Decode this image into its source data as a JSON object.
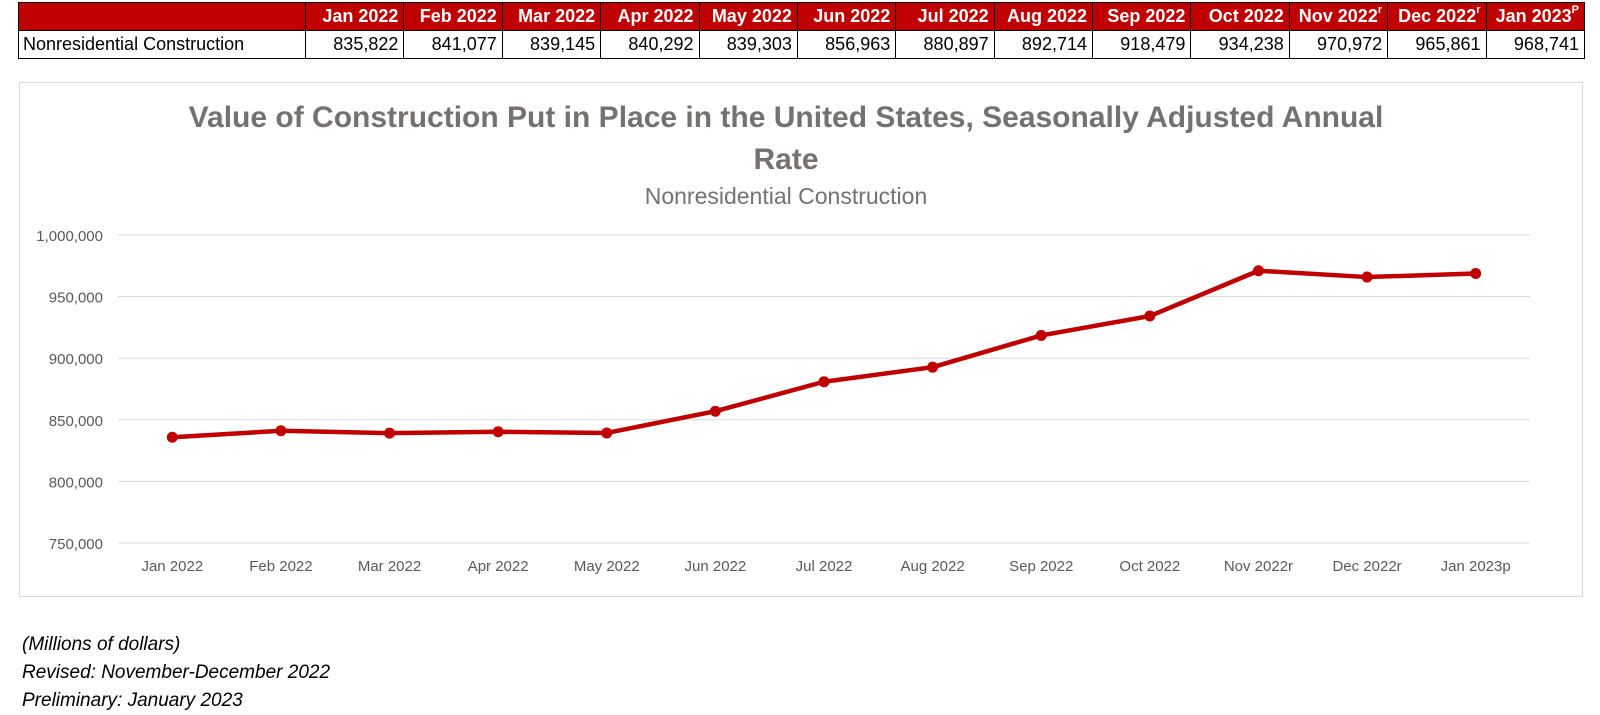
{
  "table": {
    "headers": [
      {
        "label": "Jan 2022",
        "sup": ""
      },
      {
        "label": "Feb 2022",
        "sup": ""
      },
      {
        "label": "Mar 2022",
        "sup": ""
      },
      {
        "label": "Apr 2022",
        "sup": ""
      },
      {
        "label": "May 2022",
        "sup": ""
      },
      {
        "label": "Jun 2022",
        "sup": ""
      },
      {
        "label": "Jul 2022",
        "sup": ""
      },
      {
        "label": "Aug 2022",
        "sup": ""
      },
      {
        "label": "Sep 2022",
        "sup": ""
      },
      {
        "label": "Oct 2022",
        "sup": ""
      },
      {
        "label": "Nov 2022",
        "sup": "r"
      },
      {
        "label": "Dec 2022",
        "sup": "r"
      },
      {
        "label": "Jan 2023",
        "sup": "P"
      }
    ],
    "row_label": "Nonresidential Construction",
    "values": [
      "835,822",
      "841,077",
      "839,145",
      "840,292",
      "839,303",
      "856,963",
      "880,897",
      "892,714",
      "918,479",
      "934,238",
      "970,972",
      "965,861",
      "968,741"
    ]
  },
  "chart_data": {
    "type": "line",
    "title_line1": "Value of Construction Put in Place in the United States, Seasonally Adjusted Annual",
    "title_line2": "Rate",
    "subtitle": "Nonresidential Construction",
    "categories": [
      "Jan 2022",
      "Feb 2022",
      "Mar 2022",
      "Apr 2022",
      "May 2022",
      "Jun 2022",
      "Jul 2022",
      "Aug 2022",
      "Sep 2022",
      "Oct 2022",
      "Nov 2022r",
      "Dec 2022r",
      "Jan 2023p"
    ],
    "series": [
      {
        "name": "Nonresidential Construction",
        "values": [
          835822,
          841077,
          839145,
          840292,
          839303,
          856963,
          880897,
          892714,
          918479,
          934238,
          970972,
          965861,
          968741
        ]
      }
    ],
    "ylim": [
      750000,
      1000000
    ],
    "yticks": [
      750000,
      800000,
      850000,
      900000,
      950000,
      1000000
    ],
    "ytick_labels": [
      "750,000",
      "800,000",
      "850,000",
      "900,000",
      "950,000",
      "1,000,000"
    ],
    "grid": true,
    "xlabel": "",
    "ylabel": "",
    "colors": {
      "line": "#c00000",
      "grid": "#d9d9d9",
      "axis_text": "#595959",
      "title": "#767171"
    }
  },
  "notes": {
    "units": "(Millions of dollars)",
    "revised": "Revised:  November-December 2022",
    "preliminary": "Preliminary: January 2023"
  }
}
